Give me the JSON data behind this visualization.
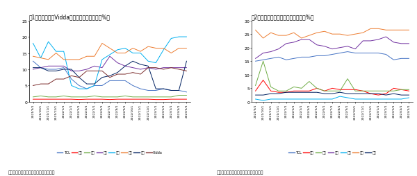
{
  "title1": "图1：线上海信和Vidda销量市占率同比提升（%）",
  "title2": "图2：线下海信销量市占率同比提升（%）",
  "source": "数据来源：奥维云网、国泰君安证券研究",
  "xlabels": [
    "2021/9/1",
    "2021/10/1",
    "2021/11/1",
    "2021/12/1",
    "2022/1/1",
    "2022/2/1",
    "2022/3/1",
    "2022/4/1",
    "2022/5/1",
    "2022/6/1",
    "2022/7/1",
    "2022/8/1",
    "2022/9/1",
    "2022/10/1",
    "2022/11/1",
    "2022/12/1",
    "2023/1/1",
    "2023/2/1",
    "2023/3/1",
    "2023/4/1",
    "2023/5/1"
  ],
  "chart1": {
    "ylim": [
      0,
      25
    ],
    "yticks": [
      0,
      5,
      10,
      15,
      20,
      25
    ],
    "series": [
      {
        "name": "TCL",
        "color": "#4472C4",
        "data": [
          12.5,
          10.5,
          10.0,
          10.0,
          10.5,
          7.0,
          5.0,
          4.0,
          5.0,
          5.0,
          6.5,
          6.5,
          6.5,
          5.0,
          4.0,
          3.5,
          3.5,
          4.0,
          3.5,
          3.5,
          3.0
        ]
      },
      {
        "name": "三星",
        "color": "#FF0000",
        "data": [
          0.8,
          0.8,
          0.8,
          0.8,
          0.8,
          0.8,
          0.7,
          0.8,
          0.8,
          0.8,
          0.7,
          0.8,
          0.8,
          0.8,
          0.8,
          0.8,
          0.7,
          0.7,
          0.8,
          0.8,
          0.8
        ]
      },
      {
        "name": "索尼",
        "color": "#70AD47",
        "data": [
          1.5,
          1.8,
          1.5,
          1.5,
          1.8,
          1.5,
          1.5,
          1.5,
          1.8,
          1.5,
          1.5,
          1.5,
          1.8,
          1.5,
          1.5,
          1.5,
          1.5,
          1.5,
          1.5,
          2.0,
          2.0
        ]
      },
      {
        "name": "创维",
        "color": "#7030A0",
        "data": [
          10.0,
          10.5,
          11.0,
          11.0,
          11.0,
          9.5,
          9.5,
          10.0,
          11.0,
          10.5,
          14.0,
          12.0,
          11.0,
          10.5,
          10.0,
          10.5,
          10.0,
          10.5,
          10.5,
          10.5,
          10.5
        ]
      },
      {
        "name": "小米",
        "color": "#00B0F0",
        "data": [
          18.0,
          13.5,
          18.5,
          15.5,
          15.5,
          5.0,
          4.0,
          4.0,
          5.0,
          13.0,
          14.5,
          16.0,
          16.5,
          15.0,
          15.0,
          12.5,
          12.0,
          16.0,
          19.5,
          20.0,
          20.0
        ]
      },
      {
        "name": "海信",
        "color": "#ED7D31",
        "data": [
          14.0,
          13.5,
          13.0,
          15.0,
          13.0,
          13.0,
          13.0,
          14.0,
          14.0,
          18.0,
          16.5,
          15.0,
          15.0,
          16.5,
          15.5,
          17.0,
          16.5,
          16.5,
          15.0,
          16.5,
          16.5
        ]
      },
      {
        "name": "海尔",
        "color": "#002060",
        "data": [
          10.5,
          10.5,
          9.5,
          9.5,
          10.0,
          10.0,
          7.5,
          5.5,
          5.5,
          7.5,
          8.0,
          9.0,
          11.0,
          12.5,
          11.5,
          11.0,
          4.0,
          4.0,
          3.5,
          3.5,
          12.5
        ]
      },
      {
        "name": "Vidda",
        "color": "#7B2C2C",
        "data": [
          5.0,
          5.5,
          5.5,
          7.0,
          7.0,
          8.0,
          7.5,
          9.5,
          9.5,
          9.5,
          7.5,
          8.5,
          8.5,
          9.0,
          8.5,
          10.5,
          10.5,
          10.0,
          10.5,
          10.0,
          9.5
        ]
      }
    ]
  },
  "chart2": {
    "ylim": [
      0,
      30
    ],
    "yticks": [
      0,
      5,
      10,
      15,
      20,
      25,
      30
    ],
    "series": [
      {
        "name": "TCL",
        "color": "#4472C4",
        "data": [
          15.0,
          15.5,
          16.0,
          16.5,
          15.5,
          16.0,
          16.5,
          16.5,
          17.0,
          17.0,
          17.5,
          18.0,
          18.5,
          18.0,
          18.0,
          18.0,
          18.0,
          17.5,
          15.5,
          16.0,
          16.0
        ]
      },
      {
        "name": "三星",
        "color": "#FF0000",
        "data": [
          4.0,
          8.0,
          4.0,
          3.5,
          3.5,
          4.0,
          4.0,
          4.0,
          5.0,
          4.0,
          5.0,
          4.5,
          4.5,
          4.5,
          4.0,
          3.0,
          2.5,
          3.0,
          5.0,
          4.5,
          4.0
        ]
      },
      {
        "name": "索尼",
        "color": "#70AD47",
        "data": [
          6.0,
          15.0,
          5.5,
          4.0,
          4.0,
          5.5,
          5.0,
          7.5,
          5.0,
          4.0,
          4.0,
          4.0,
          8.5,
          4.0,
          4.0,
          4.0,
          4.0,
          4.0,
          4.0,
          4.5,
          4.5
        ]
      },
      {
        "name": "创维",
        "color": "#7030A0",
        "data": [
          16.0,
          18.0,
          18.5,
          19.5,
          21.5,
          22.0,
          23.0,
          23.0,
          21.0,
          20.5,
          19.5,
          20.0,
          20.5,
          19.5,
          22.5,
          22.5,
          23.0,
          24.0,
          22.0,
          21.5,
          21.5
        ]
      },
      {
        "name": "小米",
        "color": "#00B0F0",
        "data": [
          1.0,
          0.5,
          1.0,
          1.0,
          1.0,
          1.0,
          1.0,
          1.0,
          1.0,
          1.0,
          1.0,
          2.0,
          1.5,
          1.0,
          1.0,
          1.0,
          1.0,
          1.0,
          1.0,
          1.0,
          1.5
        ]
      },
      {
        "name": "海信",
        "color": "#ED7D31",
        "data": [
          26.5,
          23.5,
          25.5,
          24.5,
          24.5,
          25.5,
          23.5,
          24.5,
          25.5,
          26.0,
          25.0,
          25.0,
          24.5,
          25.0,
          25.5,
          27.0,
          27.0,
          26.5,
          26.5,
          26.5,
          26.5
        ]
      },
      {
        "name": "海尔",
        "color": "#002060",
        "data": [
          2.5,
          2.5,
          3.0,
          3.0,
          3.5,
          3.5,
          3.5,
          3.5,
          3.5,
          3.0,
          3.0,
          3.5,
          3.0,
          3.0,
          3.0,
          3.0,
          3.0,
          2.5,
          3.0,
          2.5,
          2.5
        ]
      }
    ]
  }
}
